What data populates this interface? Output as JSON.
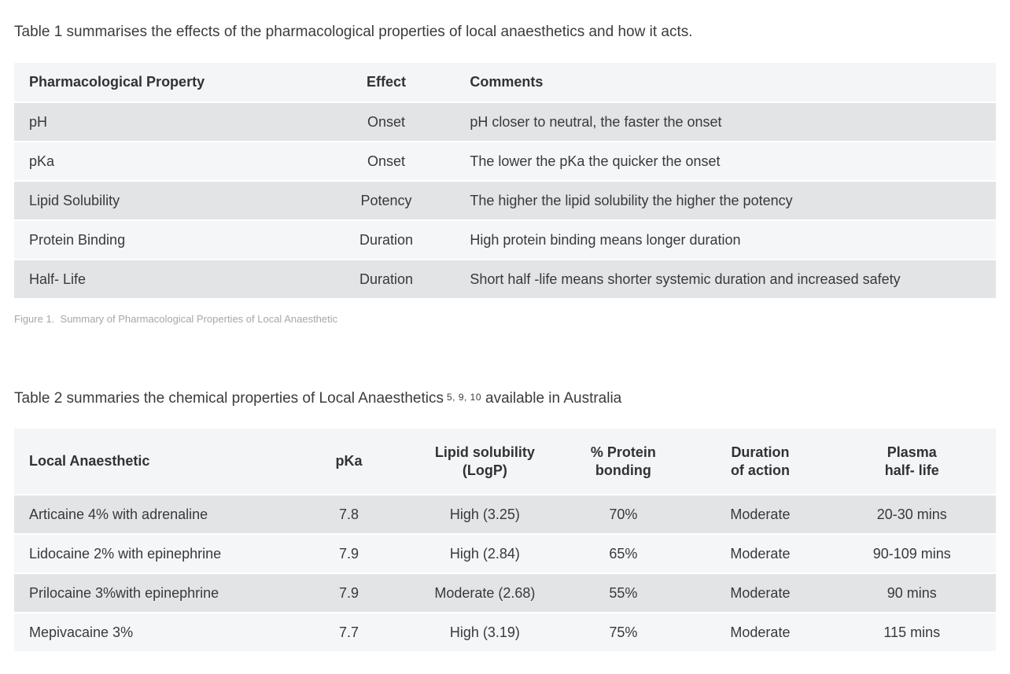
{
  "colors": {
    "row_dark": "#e3e4e6",
    "row_light": "#f5f6f7",
    "header_bg": "#f4f5f6",
    "body_text": "#37393b",
    "caption_text": "#a6a7a8",
    "page_bg": "#ffffff"
  },
  "intro": {
    "table1": "Table 1 summarises the effects of the pharmacological properties of local anaesthetics and how it acts.",
    "table2_prefix": "Table 2 summaries the chemical properties of Local Anaesthetics",
    "table2_refs": "5, 9, 10",
    "table2_suffix": "available in Australia"
  },
  "figure1_caption": "Figure 1.  Summary of Pharmacological Properties of Local Anaesthetic",
  "table1": {
    "columns": [
      "Pharmacological Property",
      "Effect",
      "Comments"
    ],
    "rows": [
      {
        "property": "pH",
        "effect": "Onset",
        "comments": "pH closer to neutral, the faster the onset"
      },
      {
        "property": "pKa",
        "effect": "Onset",
        "comments": "The lower the pKa the quicker the onset"
      },
      {
        "property": "Lipid Solubility",
        "effect": "Potency",
        "comments": "The higher the lipid solubility the higher the potency"
      },
      {
        "property": "Protein Binding",
        "effect": "Duration",
        "comments": "High protein binding means longer duration"
      },
      {
        "property": "Half- Life",
        "effect": "Duration",
        "comments": "Short half -life means shorter systemic duration and increased safety"
      }
    ]
  },
  "table2": {
    "columns": [
      {
        "line1": "Local Anaesthetic",
        "line2": ""
      },
      {
        "line1": "pKa",
        "line2": ""
      },
      {
        "line1": "Lipid solubility",
        "line2": "(LogP)"
      },
      {
        "line1": "% Protein",
        "line2": "bonding"
      },
      {
        "line1": "Duration",
        "line2": "of action"
      },
      {
        "line1": "Plasma",
        "line2": "half- life"
      }
    ],
    "rows": [
      {
        "anaesthetic": "Articaine 4% with adrenaline",
        "pka": "7.8",
        "lipid": "High (3.25)",
        "protein": "70%",
        "duration": "Moderate",
        "halflife": "20-30 mins"
      },
      {
        "anaesthetic": "Lidocaine 2% with epinephrine",
        "pka": "7.9",
        "lipid": "High (2.84)",
        "protein": "65%",
        "duration": "Moderate",
        "halflife": "90-109 mins"
      },
      {
        "anaesthetic": "Prilocaine 3%with epinephrine",
        "pka": "7.9",
        "lipid": "Moderate (2.68)",
        "protein": "55%",
        "duration": "Moderate",
        "halflife": "90 mins"
      },
      {
        "anaesthetic": "Mepivacaine 3%",
        "pka": "7.7",
        "lipid": "High (3.19)",
        "protein": "75%",
        "duration": "Moderate",
        "halflife": "115 mins"
      }
    ]
  }
}
